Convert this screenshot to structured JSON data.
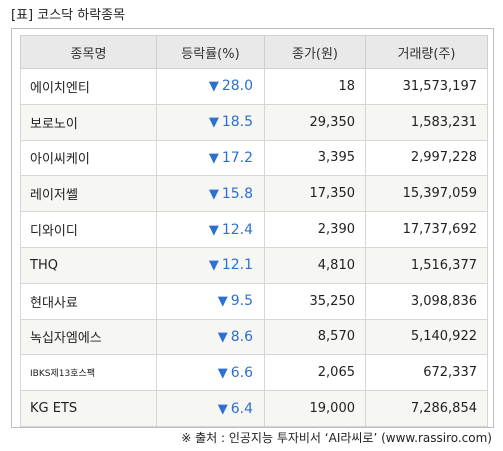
{
  "title": "[표] 코스닥 하락종목",
  "columns": [
    "종목명",
    "등락률(%)",
    "종가(원)",
    "거래량(주)"
  ],
  "down_arrow": "▼",
  "accent_color": "#2d6fd2",
  "rows": [
    {
      "name": "에이치엔티",
      "rate": "28.0",
      "close": "18",
      "volume": "31,573,197"
    },
    {
      "name": "보로노이",
      "rate": "18.5",
      "close": "29,350",
      "volume": "1,583,231"
    },
    {
      "name": "아이씨케이",
      "rate": "17.2",
      "close": "3,395",
      "volume": "2,997,228"
    },
    {
      "name": "레이저쎌",
      "rate": "15.8",
      "close": "17,350",
      "volume": "15,397,059"
    },
    {
      "name": "디와이디",
      "rate": "12.4",
      "close": "2,390",
      "volume": "17,737,692"
    },
    {
      "name": "THQ",
      "rate": "12.1",
      "close": "4,810",
      "volume": "1,516,377"
    },
    {
      "name": "현대사료",
      "rate": "9.5",
      "close": "35,250",
      "volume": "3,098,836"
    },
    {
      "name": "녹십자엠에스",
      "rate": "8.6",
      "close": "8,570",
      "volume": "5,140,922"
    },
    {
      "name": "IBKS제13호스팩",
      "rate": "6.6",
      "close": "2,065",
      "volume": "672,337"
    },
    {
      "name": "KG ETS",
      "rate": "6.4",
      "close": "19,000",
      "volume": "7,286,854"
    }
  ],
  "source": "※ 출처 : 인공지능 투자비서 ‘AI라씨로’ (www.rassiro.com)"
}
